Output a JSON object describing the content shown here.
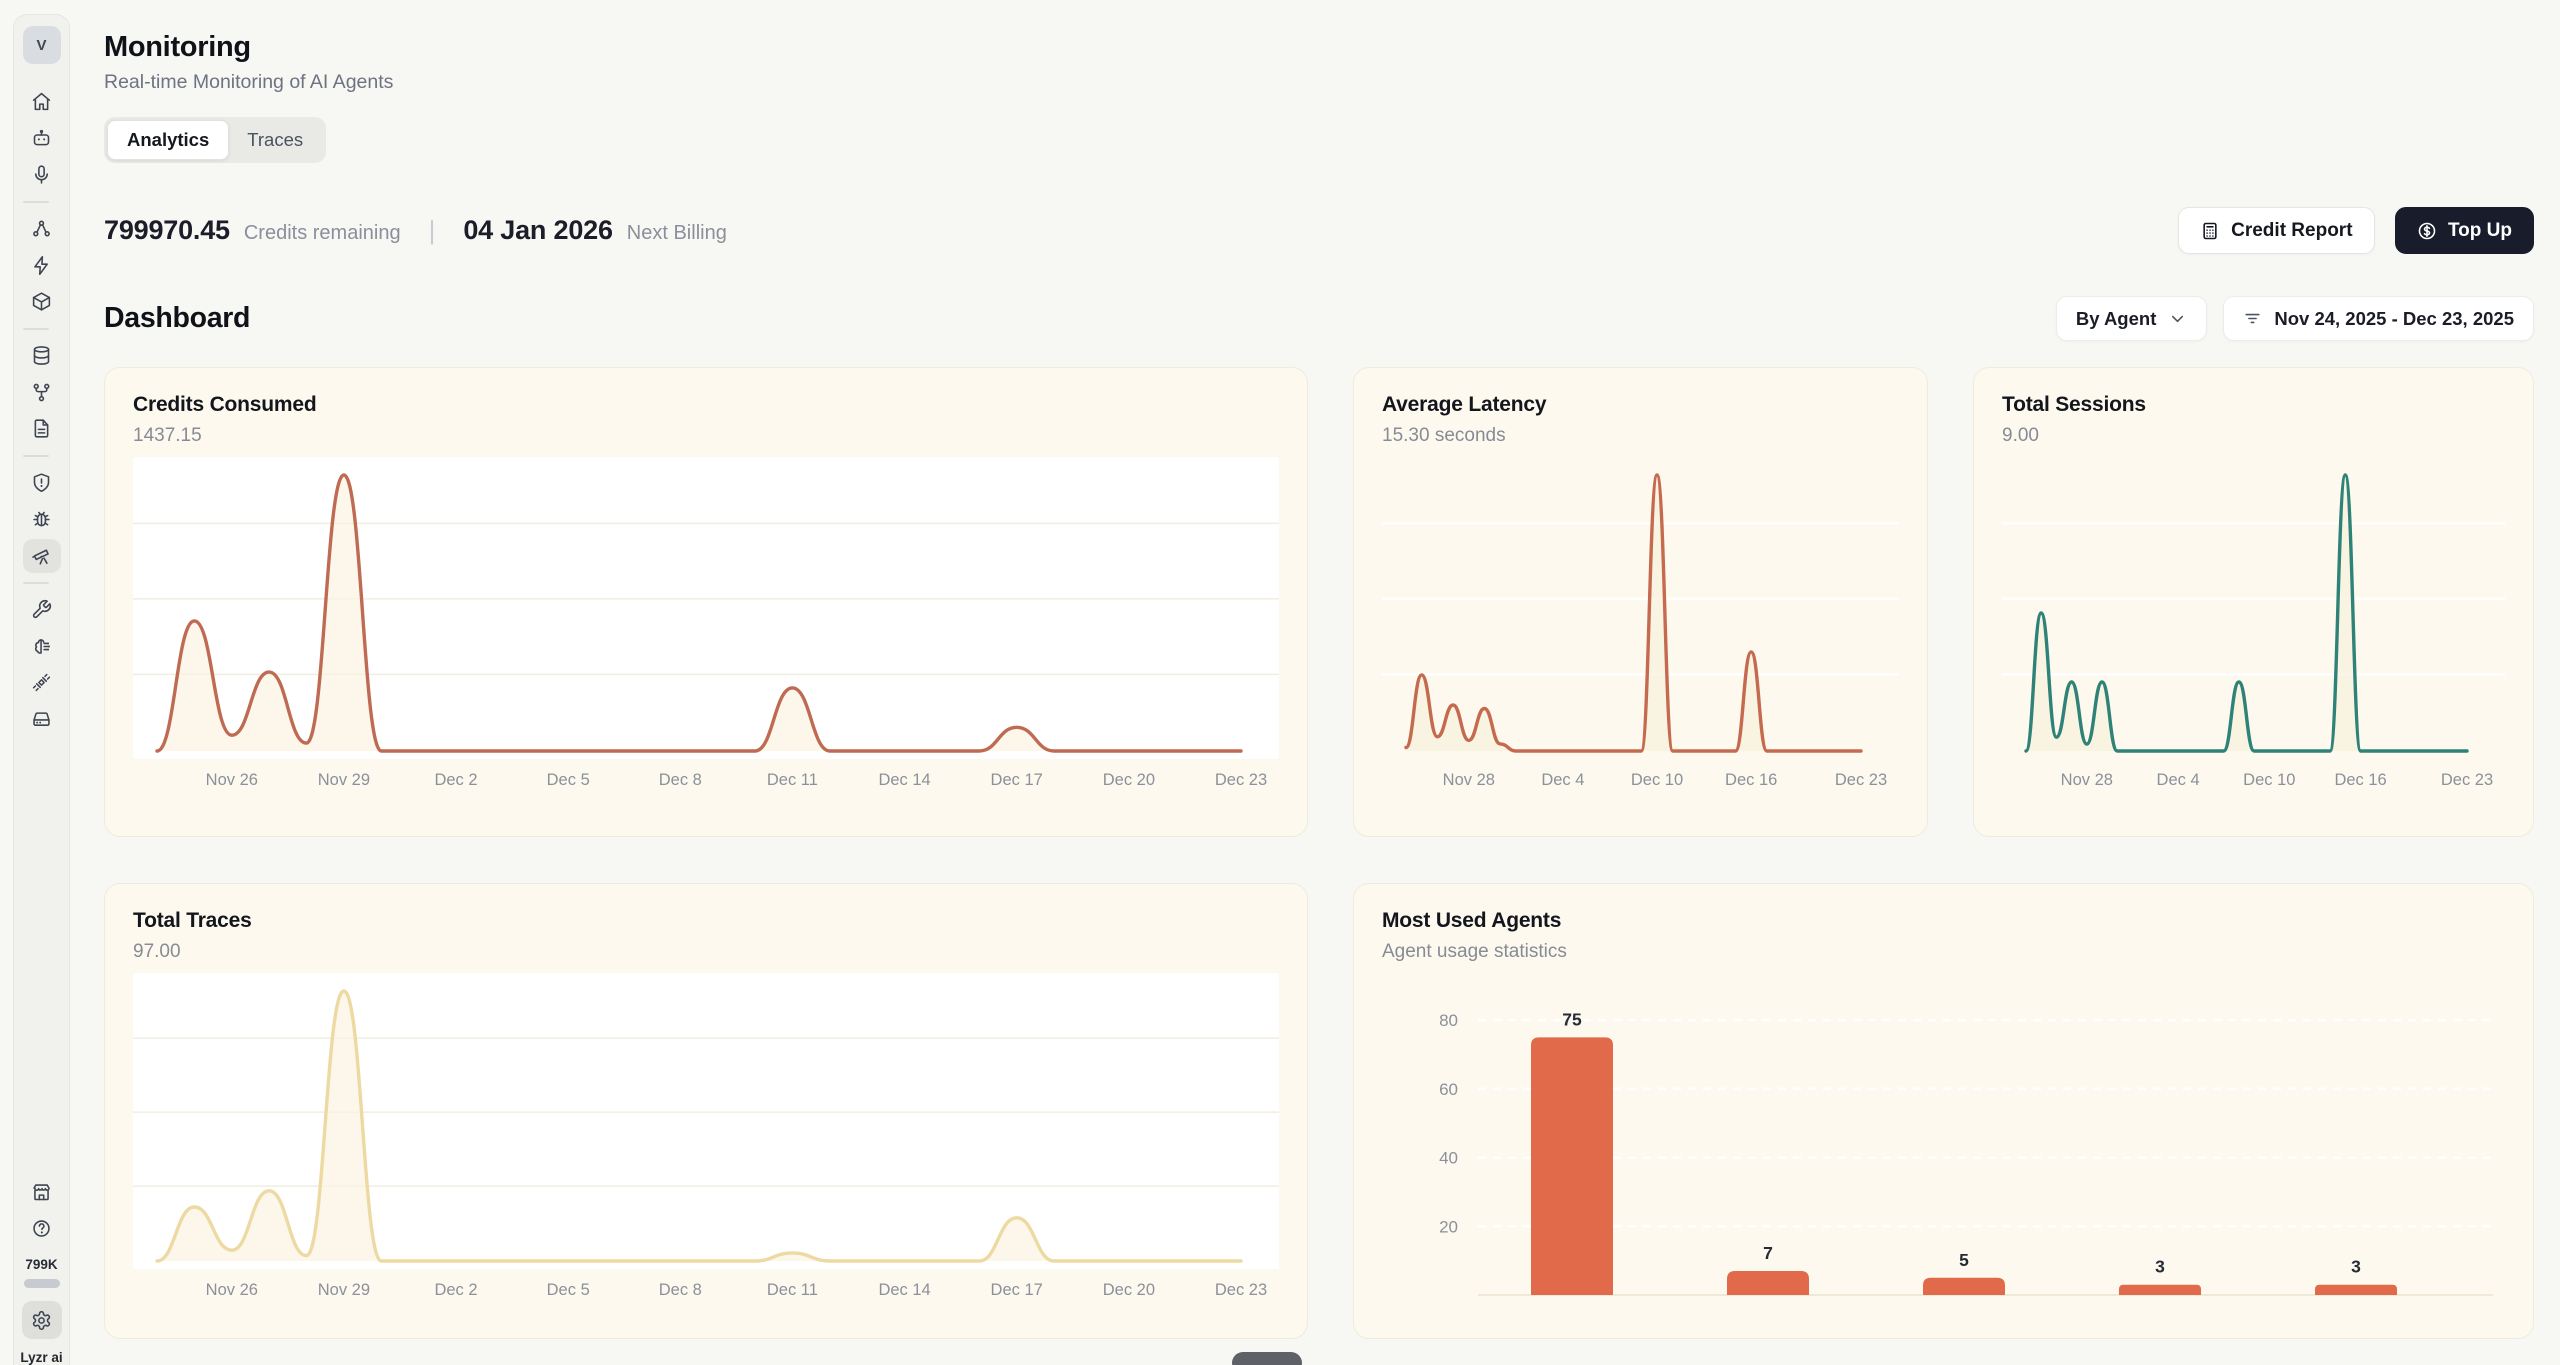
{
  "sidebar": {
    "avatar_initial": "V",
    "icon_groups": [
      [
        "home",
        "bot",
        "microphone"
      ],
      [
        "workflow",
        "zap",
        "package"
      ],
      [
        "database",
        "git-fork",
        "file-text"
      ],
      [
        "shield-alert",
        "bug",
        "telescope"
      ],
      [
        "wrench",
        "brain",
        "plug",
        "hard-drive"
      ]
    ],
    "active_icon": "telescope",
    "bottom_icons": [
      "store",
      "help-circle"
    ],
    "usage_label": "799K",
    "settings_icon": "settings",
    "brand": "Lyzr ai"
  },
  "header": {
    "title": "Monitoring",
    "subtitle": "Real-time Monitoring of AI Agents",
    "tabs": [
      {
        "label": "Analytics",
        "active": true
      },
      {
        "label": "Traces",
        "active": false
      }
    ]
  },
  "billing": {
    "credits_value": "799970.45",
    "credits_label": "Credits remaining",
    "next_billing_value": "04 Jan 2026",
    "next_billing_label": "Next Billing",
    "credit_report_button": "Credit Report",
    "top_up_button": "Top Up"
  },
  "dashboard": {
    "title": "Dashboard",
    "group_by_button": "By Agent",
    "date_range_button": "Nov 24, 2025 - Dec 23, 2025"
  },
  "colors": {
    "page_bg": "#F7F7F4",
    "card_bg": "#FDF9EE",
    "accent_dark": "#191d2b",
    "line_credits": "#BF6A52",
    "line_latency": "#C56A4E",
    "line_sessions": "#2F8277",
    "line_traces": "#EDD9A2",
    "bar_orange": "#E06A4A"
  },
  "chart_data": [
    {
      "id": "credits_consumed",
      "type": "line",
      "title": "Credits Consumed",
      "value": "1437.15",
      "color": "#BF6A52",
      "fill": "#FAF2DE",
      "plot_bg": "#FFFFFF",
      "grid": "#F0EDE2",
      "x_range": [
        "Nov 24, 2025",
        "Dec 23, 2025"
      ],
      "x": [
        "Nov 24",
        "Nov 25",
        "Nov 26",
        "Nov 27",
        "Nov 28",
        "Nov 29",
        "Nov 30",
        "Dec 1",
        "Dec 2",
        "Dec 3",
        "Dec 4",
        "Dec 5",
        "Dec 6",
        "Dec 7",
        "Dec 8",
        "Dec 9",
        "Dec 10",
        "Dec 11",
        "Dec 12",
        "Dec 13",
        "Dec 14",
        "Dec 15",
        "Dec 16",
        "Dec 17",
        "Dec 18",
        "Dec 19",
        "Dec 20",
        "Dec 21",
        "Dec 22",
        "Dec 23"
      ],
      "values": [
        0,
        330,
        40,
        200,
        20,
        700,
        0,
        0,
        0,
        0,
        0,
        0,
        0,
        0,
        0,
        0,
        0,
        160,
        0,
        0,
        0,
        0,
        0,
        60,
        0,
        0,
        0,
        0,
        0,
        0
      ],
      "ticks": [
        {
          "label": "Nov 26",
          "i": 2
        },
        {
          "label": "Nov 29",
          "i": 5
        },
        {
          "label": "Dec 2",
          "i": 8
        },
        {
          "label": "Dec 5",
          "i": 11
        },
        {
          "label": "Dec 8",
          "i": 14
        },
        {
          "label": "Dec 11",
          "i": 17
        },
        {
          "label": "Dec 14",
          "i": 20
        },
        {
          "label": "Dec 17",
          "i": 23
        },
        {
          "label": "Dec 20",
          "i": 26
        },
        {
          "label": "Dec 23",
          "i": 29
        }
      ]
    },
    {
      "id": "average_latency",
      "type": "line",
      "title": "Average Latency",
      "value": "15.30 seconds",
      "color": "#C56A4E",
      "fill": "#F8F0DC",
      "plot_bg": null,
      "grid": "#FFFFFF",
      "x_range": [
        "Nov 24, 2025",
        "Dec 23, 2025"
      ],
      "x": [
        "Nov 24",
        "Nov 25",
        "Nov 26",
        "Nov 27",
        "Nov 28",
        "Nov 29",
        "Nov 30",
        "Dec 1",
        "Dec 2",
        "Dec 3",
        "Dec 4",
        "Dec 5",
        "Dec 6",
        "Dec 7",
        "Dec 8",
        "Dec 9",
        "Dec 10",
        "Dec 11",
        "Dec 12",
        "Dec 13",
        "Dec 14",
        "Dec 15",
        "Dec 16",
        "Dec 17",
        "Dec 18",
        "Dec 19",
        "Dec 20",
        "Dec 21",
        "Dec 22",
        "Dec 23"
      ],
      "values": [
        2,
        43,
        8,
        26,
        6,
        24,
        4,
        0,
        0,
        0,
        0,
        0,
        0,
        0,
        0,
        0,
        156,
        0,
        0,
        0,
        0,
        0,
        56,
        0,
        0,
        0,
        0,
        0,
        0,
        0
      ],
      "ticks": [
        {
          "label": "Nov 28",
          "i": 4
        },
        {
          "label": "Dec 4",
          "i": 10
        },
        {
          "label": "Dec 10",
          "i": 16
        },
        {
          "label": "Dec 16",
          "i": 22
        },
        {
          "label": "Dec 23",
          "i": 29
        }
      ]
    },
    {
      "id": "total_sessions",
      "type": "line",
      "title": "Total Sessions",
      "value": "9.00",
      "color": "#2F8277",
      "fill": "#F8F0DC",
      "plot_bg": null,
      "grid": "#FFFFFF",
      "x_range": [
        "Nov 24, 2025",
        "Dec 23, 2025"
      ],
      "x": [
        "Nov 24",
        "Nov 25",
        "Nov 26",
        "Nov 27",
        "Nov 28",
        "Nov 29",
        "Nov 30",
        "Dec 1",
        "Dec 2",
        "Dec 3",
        "Dec 4",
        "Dec 5",
        "Dec 6",
        "Dec 7",
        "Dec 8",
        "Dec 9",
        "Dec 10",
        "Dec 11",
        "Dec 12",
        "Dec 13",
        "Dec 14",
        "Dec 15",
        "Dec 16",
        "Dec 17",
        "Dec 18",
        "Dec 19",
        "Dec 20",
        "Dec 21",
        "Dec 22",
        "Dec 23"
      ],
      "values": [
        0,
        2,
        0.2,
        1,
        0.1,
        1,
        0,
        0,
        0,
        0,
        0,
        0,
        0,
        0,
        1,
        0,
        0,
        0,
        0,
        0,
        0,
        4,
        0,
        0,
        0,
        0,
        0,
        0,
        0,
        0
      ],
      "ticks": [
        {
          "label": "Nov 28",
          "i": 4
        },
        {
          "label": "Dec 4",
          "i": 10
        },
        {
          "label": "Dec 10",
          "i": 16
        },
        {
          "label": "Dec 16",
          "i": 22
        },
        {
          "label": "Dec 23",
          "i": 29
        }
      ]
    },
    {
      "id": "total_traces",
      "type": "line",
      "title": "Total Traces",
      "value": "97.00",
      "color": "#EDD9A2",
      "fill": "#FAF2DE",
      "plot_bg": "#FFFFFF",
      "grid": "#F0EDE2",
      "x_range": [
        "Nov 24, 2025",
        "Dec 23, 2025"
      ],
      "x": [
        "Nov 24",
        "Nov 25",
        "Nov 26",
        "Nov 27",
        "Nov 28",
        "Nov 29",
        "Nov 30",
        "Dec 1",
        "Dec 2",
        "Dec 3",
        "Dec 4",
        "Dec 5",
        "Dec 6",
        "Dec 7",
        "Dec 8",
        "Dec 9",
        "Dec 10",
        "Dec 11",
        "Dec 12",
        "Dec 13",
        "Dec 14",
        "Dec 15",
        "Dec 16",
        "Dec 17",
        "Dec 18",
        "Dec 19",
        "Dec 20",
        "Dec 21",
        "Dec 22",
        "Dec 23"
      ],
      "values": [
        0,
        10,
        2,
        13,
        1,
        50,
        0,
        0,
        0,
        0,
        0,
        0,
        0,
        0,
        0,
        0,
        0,
        1.5,
        0,
        0,
        0,
        0,
        0,
        8,
        0,
        0,
        0,
        0,
        0,
        0
      ],
      "ticks": [
        {
          "label": "Nov 26",
          "i": 2
        },
        {
          "label": "Nov 29",
          "i": 5
        },
        {
          "label": "Dec 2",
          "i": 8
        },
        {
          "label": "Dec 5",
          "i": 11
        },
        {
          "label": "Dec 8",
          "i": 14
        },
        {
          "label": "Dec 11",
          "i": 17
        },
        {
          "label": "Dec 14",
          "i": 20
        },
        {
          "label": "Dec 17",
          "i": 23
        },
        {
          "label": "Dec 20",
          "i": 26
        },
        {
          "label": "Dec 23",
          "i": 29
        }
      ]
    },
    {
      "id": "most_used_agents",
      "type": "bar",
      "title": "Most Used Agents",
      "subtitle": "Agent usage statistics",
      "values": [
        75,
        7,
        5,
        3,
        3
      ],
      "bar_labels": [
        "75",
        "7",
        "5",
        "3",
        "3"
      ],
      "y_ticks": [
        20,
        40,
        60,
        80
      ],
      "ylim": [
        0,
        85
      ],
      "color": "#E06A4A",
      "grid_style": "dashed"
    }
  ]
}
